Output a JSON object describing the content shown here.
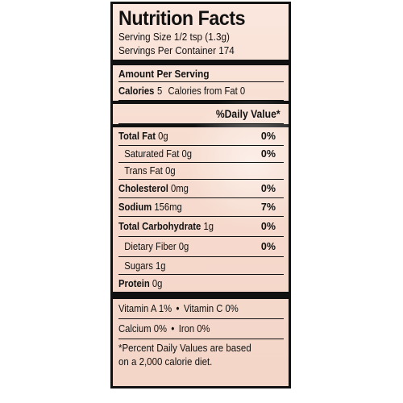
{
  "title": "Nutrition Facts",
  "serving_size": "Serving Size 1/2 tsp (1.3g)",
  "servings_per_container": "Servings Per Container 174",
  "amount_per_serving": "Amount Per Serving",
  "calories": {
    "label": "Calories",
    "value": "5",
    "from_fat": "Calories from Fat 0"
  },
  "daily_value_header": "%Daily Value*",
  "nutrients": {
    "total_fat": {
      "label": "Total Fat",
      "amount": "0g",
      "dv": "0%"
    },
    "saturated_fat": {
      "label": "Saturated Fat",
      "amount": "0g",
      "dv": "0%"
    },
    "trans_fat": {
      "label": "Trans Fat",
      "amount": "0g"
    },
    "cholesterol": {
      "label": "Cholesterol",
      "amount": "0mg",
      "dv": "0%"
    },
    "sodium": {
      "label": "Sodium",
      "amount": "156mg",
      "dv": "7%"
    },
    "total_carbohydrate": {
      "label": "Total Carbohydrate",
      "amount": "1g",
      "dv": "0%"
    },
    "dietary_fiber": {
      "label": "Dietary Fiber",
      "amount": "0g",
      "dv": "0%"
    },
    "sugars": {
      "label": "Sugars",
      "amount": "1g"
    },
    "protein": {
      "label": "Protein",
      "amount": "0g"
    }
  },
  "vitamins": {
    "vitamin_a": "Vitamin A 1%",
    "vitamin_c": "Vitamin C 0%",
    "calcium": "Calcium 0%",
    "iron": "Iron 0%",
    "separator": "•"
  },
  "footnote": {
    "line1": "*Percent Daily Values are based",
    "line2": "on a 2,000 calorie diet."
  }
}
